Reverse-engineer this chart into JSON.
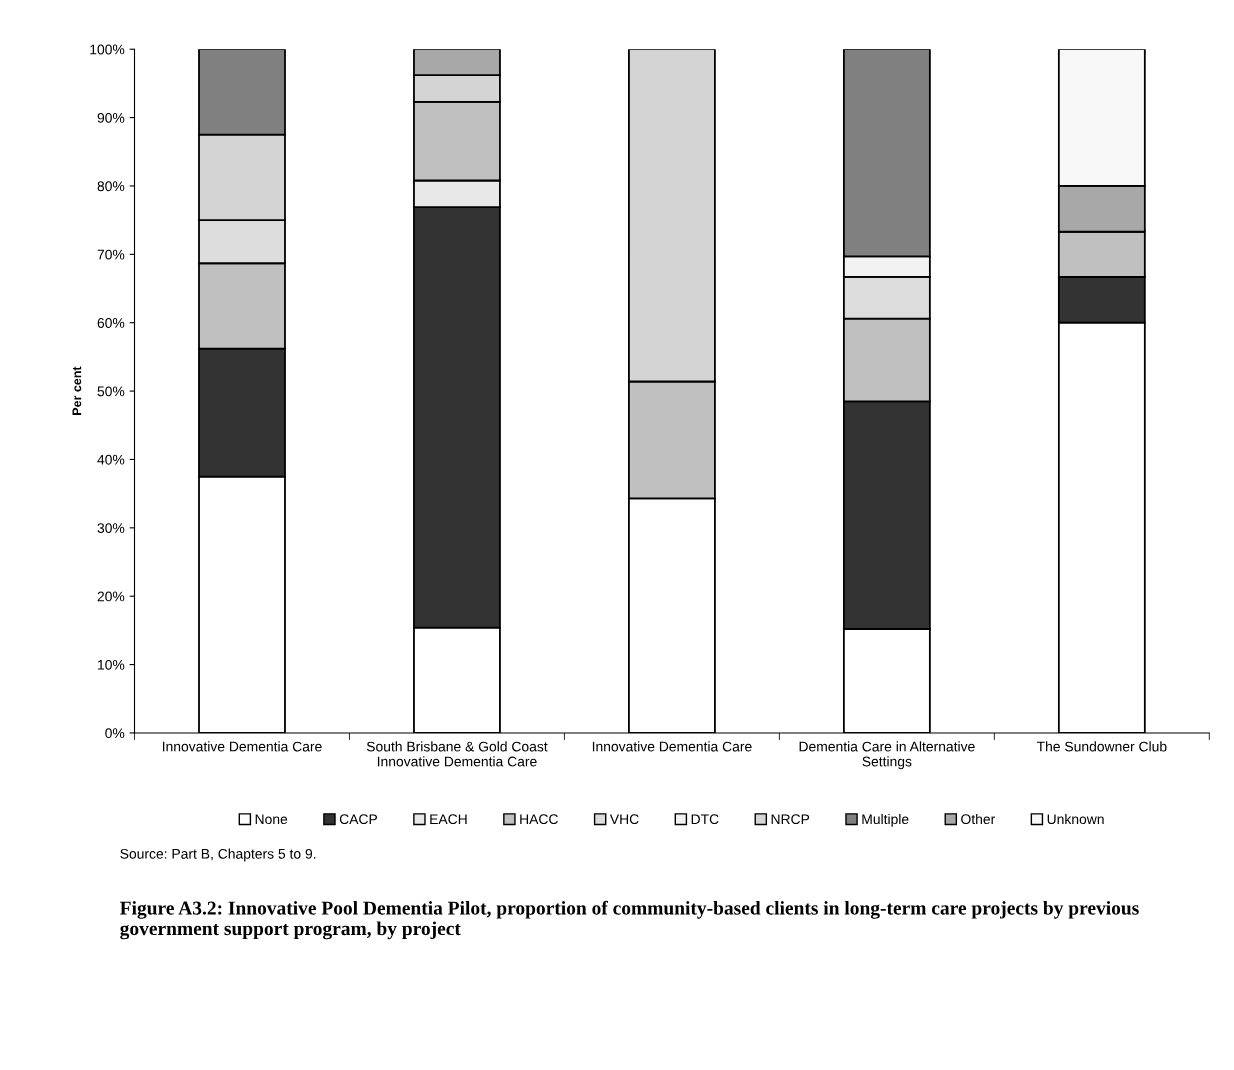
{
  "chart_data": {
    "type": "bar",
    "stacked": true,
    "title": "Figure A3.2: Innovative Pool Dementia Pilot, proportion of community-based clients in long-term care projects by previous government support program, by project",
    "ylabel": "Per cent",
    "annotations": [
      "Source: Part B, Chapters 5 to 9."
    ],
    "categories": [
      "Innovative Dementia Care",
      "South Brisbane & Gold Coast\nInnovative Dementia Care",
      "Innovative Dementia Care",
      "Dementia Care in Alternative\nSettings",
      "The Sundowner Club"
    ],
    "series": [
      {
        "name": "None",
        "color": "#ffffff",
        "values": [
          37.5,
          15.4,
          34.3,
          15.2,
          60.0
        ]
      },
      {
        "name": "CACP",
        "color": "#333333",
        "values": [
          18.7,
          61.5,
          0,
          33.3,
          6.7
        ]
      },
      {
        "name": "EACH",
        "color": "#e8e8e8",
        "values": [
          0,
          3.9,
          0,
          0,
          0
        ]
      },
      {
        "name": "HACC",
        "color": "#c0c0c0",
        "values": [
          12.5,
          11.5,
          17.1,
          12.1,
          6.6
        ]
      },
      {
        "name": "VHC",
        "color": "#dcdcdc",
        "values": [
          6.3,
          0,
          0,
          6.1,
          0
        ]
      },
      {
        "name": "DTC",
        "color": "#f2f2f2",
        "values": [
          0,
          0,
          0,
          3.0,
          0
        ]
      },
      {
        "name": "NRCP",
        "color": "#d4d4d4",
        "values": [
          12.5,
          3.9,
          48.6,
          0,
          0
        ]
      },
      {
        "name": "Multiple",
        "color": "#808080",
        "values": [
          12.5,
          0,
          0,
          30.3,
          0
        ]
      },
      {
        "name": "Other",
        "color": "#a8a8a8",
        "values": [
          0,
          3.8,
          0,
          0,
          6.7
        ]
      },
      {
        "name": "Unknown",
        "color": "#f8f8f8",
        "values": [
          0,
          0,
          0,
          0,
          20.0
        ]
      }
    ],
    "ylim": [
      0,
      100
    ],
    "yticks": [
      {
        "value": 0,
        "label": "0%"
      },
      {
        "value": 10,
        "label": "10%"
      },
      {
        "value": 20,
        "label": "20%"
      },
      {
        "value": 30,
        "label": "30%"
      },
      {
        "value": 40,
        "label": "40%"
      },
      {
        "value": 50,
        "label": "50%"
      },
      {
        "value": 60,
        "label": "60%"
      },
      {
        "value": 70,
        "label": "70%"
      },
      {
        "value": 80,
        "label": "80%"
      },
      {
        "value": 90,
        "label": "90%"
      },
      {
        "value": 100,
        "label": "100%"
      }
    ],
    "grid": false,
    "legend": "bottom"
  }
}
